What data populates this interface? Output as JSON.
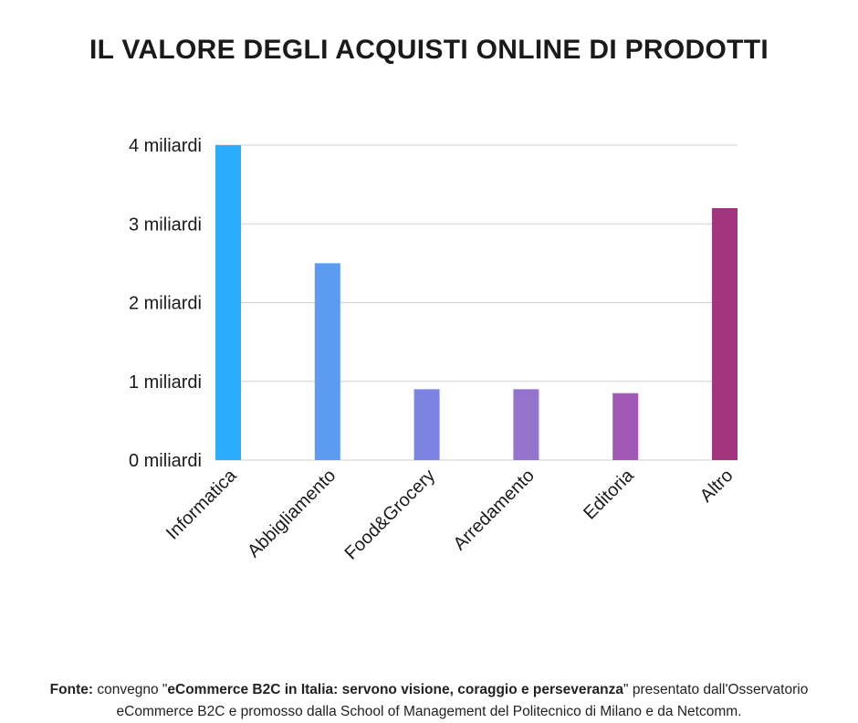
{
  "chart_data": {
    "type": "bar",
    "title": "IL VALORE DEGLI ACQUISTI ONLINE DI PRODOTTI",
    "categories": [
      "Informatica",
      "Abbigliamento",
      "Food&Grocery",
      "Arredamento",
      "Editoria",
      "Altro"
    ],
    "values": [
      4.0,
      2.5,
      0.9,
      0.9,
      0.85,
      3.2
    ],
    "colors": [
      "#2aaefc",
      "#5b9cf2",
      "#7b84e0",
      "#9473cd",
      "#a259b6",
      "#a3347e"
    ],
    "y_ticks": [
      "0 miliardi",
      "1 miliardi",
      "2 miliardi",
      "3 miliardi",
      "4 miliardi"
    ],
    "ylim": [
      0,
      4
    ],
    "grid": true,
    "xlabel": "",
    "ylabel": ""
  },
  "source": {
    "label": "Fonte:",
    "text_before": " convegno \"",
    "bold": "eCommerce B2C in Italia: servono visione, coraggio e perseveranza",
    "text_after": "\" presentato dall'Osservatorio eCommerce B2C e promosso dalla School of Management del Politecnico di Milano e da Netcomm."
  }
}
